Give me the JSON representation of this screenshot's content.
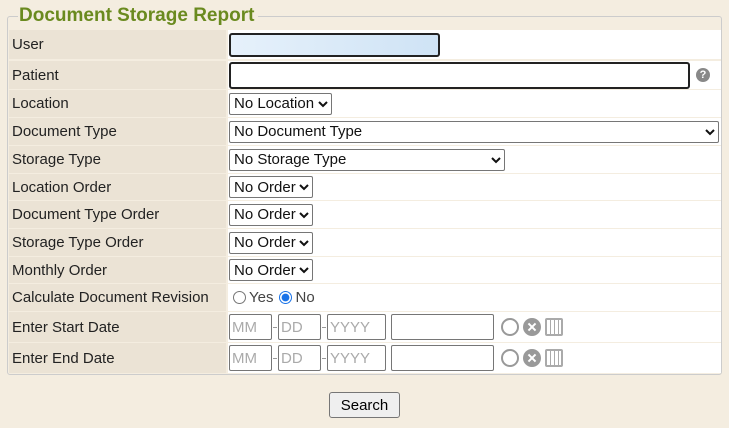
{
  "title": "Document Storage Report",
  "fields": {
    "user": {
      "label": "User",
      "value": ""
    },
    "patient": {
      "label": "Patient",
      "value": ""
    },
    "location": {
      "label": "Location",
      "selected": "No Location"
    },
    "document_type": {
      "label": "Document Type",
      "selected": "No Document Type"
    },
    "storage_type": {
      "label": "Storage Type",
      "selected": "No Storage Type"
    },
    "location_order": {
      "label": "Location Order",
      "selected": "No Order"
    },
    "document_type_order": {
      "label": "Document Type Order",
      "selected": "No Order"
    },
    "storage_type_order": {
      "label": "Storage Type Order",
      "selected": "No Order"
    },
    "monthly_order": {
      "label": "Monthly Order",
      "selected": "No Order"
    },
    "calc_revision": {
      "label": "Calculate Document Revision",
      "yes": "Yes",
      "no": "No",
      "selected": "No"
    },
    "start_date": {
      "label": "Enter Start Date",
      "mm": "MM",
      "dd": "DD",
      "yyyy": "YYYY"
    },
    "end_date": {
      "label": "Enter End Date",
      "mm": "MM",
      "dd": "DD",
      "yyyy": "YYYY"
    }
  },
  "search_label": "Search",
  "colors": {
    "title": "#6a8a1f",
    "label_bg": "#ebe3d5",
    "page_bg": "#f4ede0",
    "radio": "#1a73e8"
  }
}
